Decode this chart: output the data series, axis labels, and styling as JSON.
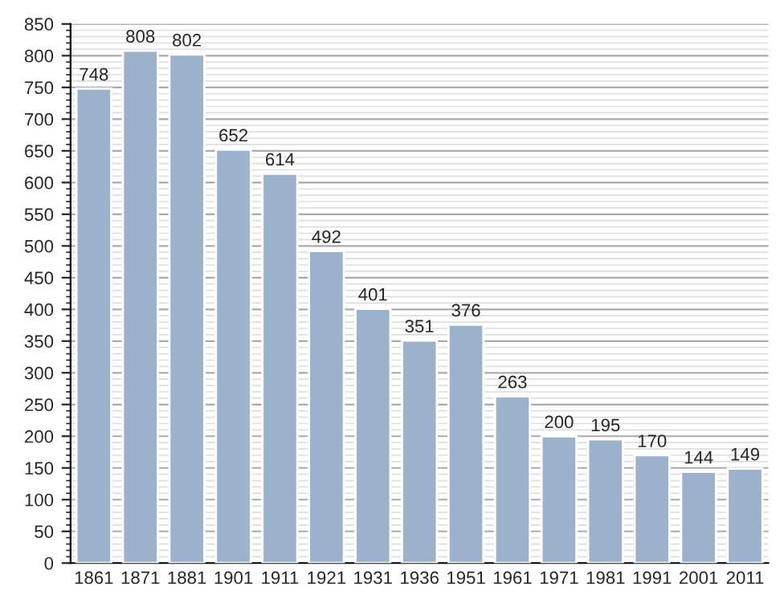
{
  "chart_data": {
    "type": "bar",
    "categories": [
      "1861",
      "1871",
      "1881",
      "1901",
      "1911",
      "1921",
      "1931",
      "1936",
      "1951",
      "1961",
      "1971",
      "1981",
      "1991",
      "2001",
      "2011"
    ],
    "values": [
      748,
      808,
      802,
      652,
      614,
      492,
      401,
      351,
      376,
      263,
      200,
      195,
      170,
      144,
      149
    ],
    "color": "#9bb2cc",
    "ylim": [
      0,
      850
    ],
    "yticks": [
      0,
      50,
      100,
      150,
      200,
      250,
      300,
      350,
      400,
      450,
      500,
      550,
      600,
      650,
      700,
      750,
      800,
      850
    ],
    "grid": "y",
    "data_labels": true
  }
}
